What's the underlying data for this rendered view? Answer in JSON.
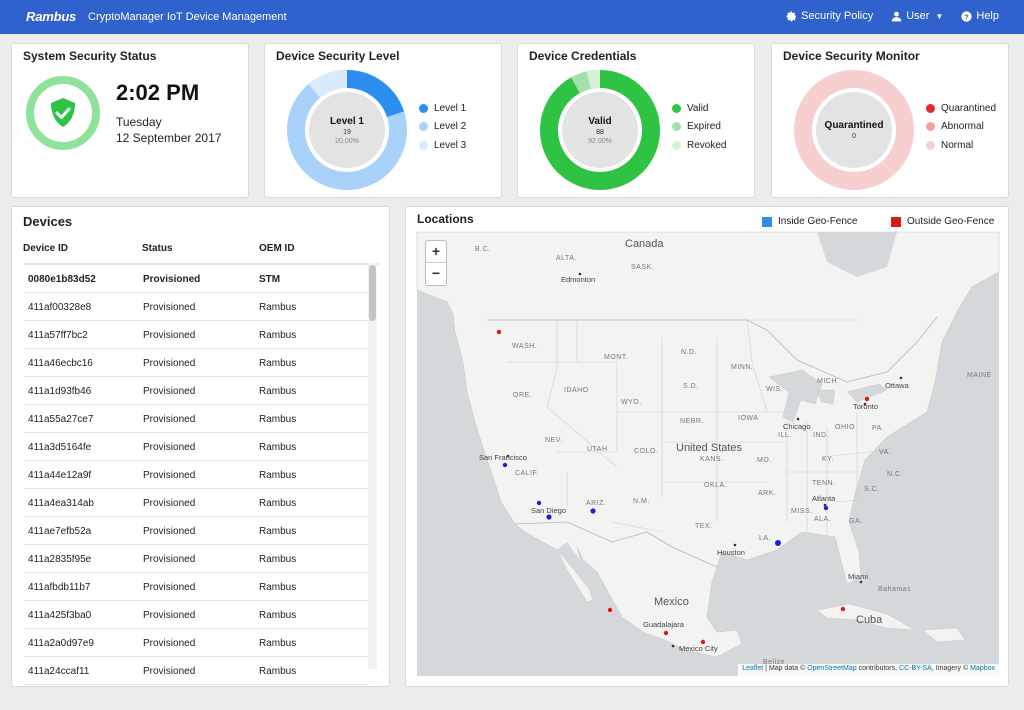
{
  "nav": {
    "brand": "Rambus",
    "title": "CryptoManager IoT Device Management",
    "security_policy": "Security Policy",
    "user": "User",
    "help": "Help"
  },
  "colors": {
    "nav_bg": "#2f62cc",
    "level1": "#2c8ff0",
    "level2": "#a9d2fb",
    "level3": "#d8eafc",
    "valid": "#2fc344",
    "expired": "#a4e0ab",
    "revoked": "#d4f0d7",
    "quarantined": "#e12b2b",
    "abnormal": "#f0a3a3",
    "normal": "#f8cfcf",
    "inside": "#2f8ee8",
    "outside": "#dd1a1a"
  },
  "system_status": {
    "title": "System Security Status",
    "time": "2:02 PM",
    "day": "Tuesday",
    "date": "12 September 2017"
  },
  "security_level": {
    "title": "Device Security Level",
    "center_label": "Level 1",
    "center_count": "19",
    "center_pct": "20.00%",
    "legend": [
      "Level 1",
      "Level 2",
      "Level 3"
    ]
  },
  "credentials": {
    "title": "Device Credentials",
    "center_label": "Valid",
    "center_count": "88",
    "center_pct": "92.00%",
    "legend": [
      "Valid",
      "Expired",
      "Revoked"
    ]
  },
  "monitor": {
    "title": "Device Security Monitor",
    "center_label": "Quarantined",
    "center_count": "0",
    "legend": [
      "Quarantined",
      "Abnormal",
      "Normal"
    ]
  },
  "devices": {
    "title": "Devices",
    "columns": [
      "Device ID",
      "Status",
      "OEM ID"
    ],
    "rows": [
      [
        "0080e1b83d52",
        "Provisioned",
        "STM"
      ],
      [
        "411af00328e8",
        "Provisioned",
        "Rambus"
      ],
      [
        "411a57ff7bc2",
        "Provisioned",
        "Rambus"
      ],
      [
        "411a46ecbc16",
        "Provisioned",
        "Rambus"
      ],
      [
        "411a1d93fb46",
        "Provisioned",
        "Rambus"
      ],
      [
        "411a55a27ce7",
        "Provisioned",
        "Rambus"
      ],
      [
        "411a3d5164fe",
        "Provisioned",
        "Rambus"
      ],
      [
        "411a44e12a9f",
        "Provisioned",
        "Rambus"
      ],
      [
        "411a4ea314ab",
        "Provisioned",
        "Rambus"
      ],
      [
        "411ae7efb52a",
        "Provisioned",
        "Rambus"
      ],
      [
        "411a2835f95e",
        "Provisioned",
        "Rambus"
      ],
      [
        "411afbdb11b7",
        "Provisioned",
        "Rambus"
      ],
      [
        "411a425f3ba0",
        "Provisioned",
        "Rambus"
      ],
      [
        "411a2a0d97e9",
        "Provisioned",
        "Rambus"
      ],
      [
        "411a24ccaf11",
        "Provisioned",
        "Rambus"
      ]
    ]
  },
  "locations": {
    "title": "Locations",
    "legend_inside": "Inside Geo-Fence",
    "legend_outside": "Outside Geo-Fence",
    "zoom_in": "+",
    "zoom_out": "−",
    "attribution": {
      "leaflet": "Leaflet",
      "map_data": "Map data ©",
      "osm": "OpenStreetMap",
      "contributors": "contributors,",
      "license": "CC-BY-SA",
      "imagery": ", Imagery ©",
      "mapbox": "Mapbox"
    },
    "labels": {
      "canada": "Canada",
      "us": "United States",
      "mexico": "Mexico",
      "cuba": "Cuba",
      "bc": "B.C.",
      "alta": "ALTA.",
      "sask": "SASK.",
      "wash": "WASH.",
      "mont": "MONT.",
      "nd": "N.D.",
      "minn": "MINN.",
      "ore": "ORE.",
      "idaho": "IDAHO",
      "sd": "S.D.",
      "wis": "WIS.",
      "mich": "MICH.",
      "wyo": "WYO.",
      "nev": "NEV.",
      "utah": "UTAH",
      "colo": "COLO.",
      "nebr": "NEBR.",
      "iowa": "IOWA",
      "ill": "ILL.",
      "ind": "IND.",
      "ohio": "OHIO",
      "pa": "PA.",
      "calif": "CALIF.",
      "kans": "KANS.",
      "mo": "MO.",
      "ky": "KY.",
      "va": "VA.",
      "tenn": "TENN.",
      "nc": "N.C.",
      "okla": "OKLA.",
      "ark": "ARK.",
      "sc": "S.C.",
      "ariz": "ARIZ.",
      "nm": "N.M.",
      "miss": "MISS.",
      "ala": "ALA.",
      "ga": "GA.",
      "tex": "TEX.",
      "la": "LA.",
      "maine": "MAINE",
      "edmonton": "Edmonton",
      "ottawa": "Ottawa",
      "toronto": "Toronto",
      "chicago": "Chicago",
      "sf": "San Francisco",
      "sd_city": "San Diego",
      "atlanta": "Atlanta",
      "houston": "Houston",
      "miami": "Miami",
      "bahamas": "Bahamas",
      "guadalajara": "Guadalajara",
      "mexico_city": "Mexico City",
      "belize": "Belize"
    }
  }
}
